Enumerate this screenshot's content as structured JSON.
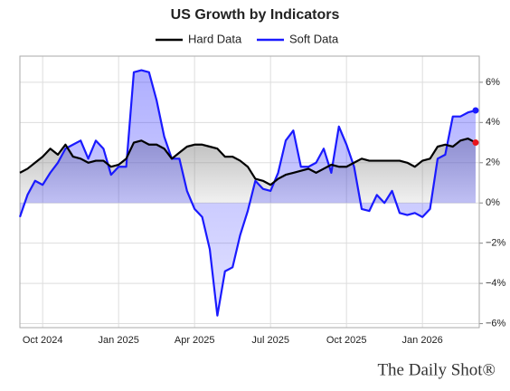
{
  "chart_data": {
    "type": "line",
    "title": "US Growth by Indicators",
    "x": [
      2024.675,
      2024.7,
      2024.725,
      2024.75,
      2024.775,
      2024.8,
      2024.825,
      2024.85,
      2024.875,
      2024.9,
      2024.925,
      2024.95,
      2024.975,
      2025,
      2025.025,
      2025.05,
      2025.075,
      2025.1,
      2025.125,
      2025.15,
      2025.175,
      2025.2,
      2025.225,
      2025.25,
      2025.275,
      2025.3,
      2025.325,
      2025.35,
      2025.375,
      2025.4,
      2025.425,
      2025.45,
      2025.475,
      2025.5,
      2025.525,
      2025.55,
      2025.575,
      2025.6,
      2025.625,
      2025.65,
      2025.675,
      2025.7,
      2025.725,
      2025.75,
      2025.775,
      2025.8,
      2025.825,
      2025.85,
      2025.875,
      2025.9,
      2025.925,
      2025.95,
      2025.975,
      2026,
      2026.025,
      2026.05,
      2026.075,
      2026.1,
      2026.125,
      2026.15,
      2026.175
    ],
    "series": [
      {
        "name": "Hard Data",
        "color": "#000000",
        "end_marker_color": "#e8131c",
        "values": [
          1.5,
          1.7,
          2.0,
          2.3,
          2.7,
          2.4,
          2.9,
          2.3,
          2.2,
          2.0,
          2.1,
          2.1,
          1.8,
          1.9,
          2.2,
          3.0,
          3.1,
          2.9,
          2.9,
          2.7,
          2.2,
          2.5,
          2.8,
          2.9,
          2.9,
          2.8,
          2.7,
          2.3,
          2.3,
          2.1,
          1.8,
          1.2,
          1.1,
          0.9,
          1.2,
          1.4,
          1.5,
          1.6,
          1.7,
          1.5,
          1.7,
          1.9,
          1.8,
          1.8,
          2.0,
          2.2,
          2.1,
          2.1,
          2.1,
          2.1,
          2.1,
          2.0,
          1.8,
          2.1,
          2.2,
          2.8,
          2.9,
          2.8,
          3.1,
          3.2,
          3.0
        ]
      },
      {
        "name": "Soft Data",
        "color": "#1a1aff",
        "end_marker_color": "#1a1aff",
        "values": [
          -0.7,
          0.4,
          1.1,
          0.9,
          1.5,
          2.0,
          2.7,
          2.9,
          3.1,
          2.2,
          3.1,
          2.7,
          1.4,
          1.8,
          1.8,
          6.5,
          6.6,
          6.5,
          5.1,
          3.3,
          2.2,
          2.2,
          0.6,
          -0.3,
          -0.7,
          -2.3,
          -5.6,
          -3.4,
          -3.2,
          -1.6,
          -0.4,
          1.1,
          0.7,
          0.6,
          1.5,
          3.1,
          3.6,
          1.8,
          1.8,
          2.0,
          2.7,
          1.5,
          3.8,
          2.9,
          1.8,
          -0.3,
          -0.4,
          0.4,
          0,
          0.6,
          -0.5,
          -0.6,
          -0.5,
          -0.7,
          -0.3,
          2.2,
          2.4,
          4.3,
          4.3,
          4.5,
          4.6
        ]
      }
    ],
    "xlim": [
      2024.675,
      2026.187
    ],
    "xticks": [
      {
        "value": 2024.75,
        "label": "Oct 2024"
      },
      {
        "value": 2025,
        "label": "Jan 2025"
      },
      {
        "value": 2025.25,
        "label": "Apr 2025"
      },
      {
        "value": 2025.5,
        "label": "Jul 2025"
      },
      {
        "value": 2025.75,
        "label": "Oct 2025"
      },
      {
        "value": 2026,
        "label": "Jan 2026"
      }
    ],
    "ylim": [
      -6.2,
      7.3
    ],
    "yticks": [
      {
        "value": -6,
        "label": "−6%"
      },
      {
        "value": -4,
        "label": "−4%"
      },
      {
        "value": -2,
        "label": "−2%"
      },
      {
        "value": 0,
        "label": "0%"
      },
      {
        "value": 2,
        "label": "2%"
      },
      {
        "value": 4,
        "label": "4%"
      },
      {
        "value": 6,
        "label": "6%"
      }
    ],
    "grid": true,
    "area_fill": true,
    "source": "The Daily Shot®"
  }
}
